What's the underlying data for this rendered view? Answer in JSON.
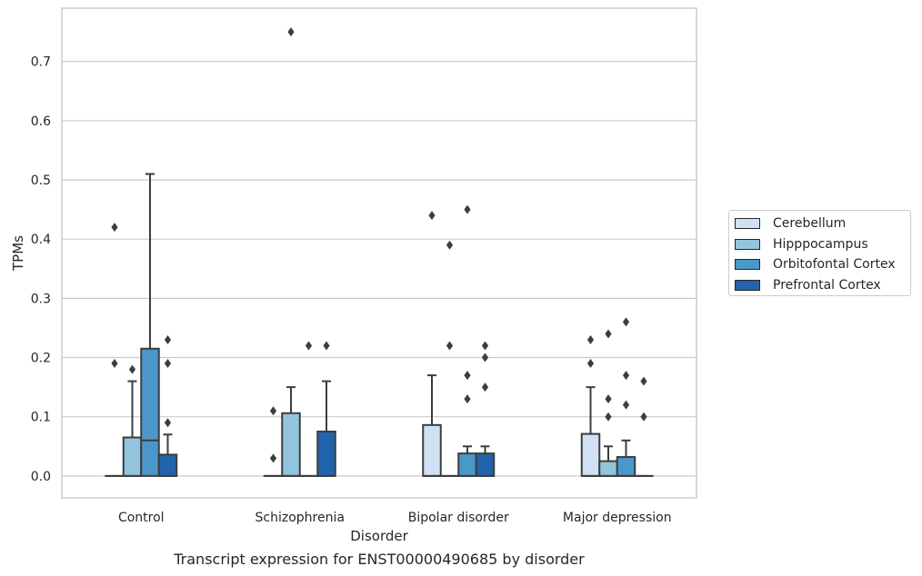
{
  "caption": "Transcript expression for ENST00000490685 by disorder",
  "chart_data": {
    "type": "box",
    "title": "",
    "xlabel": "Disorder",
    "ylabel": "TPMs",
    "ylim": [
      -0.037,
      0.79
    ],
    "yticks": [
      "0.0",
      "0.1",
      "0.2",
      "0.3",
      "0.4",
      "0.5",
      "0.6",
      "0.7"
    ],
    "categories": [
      "Control",
      "Schizophrenia",
      "Bipolar disorder",
      "Major depression"
    ],
    "grid": true,
    "legend_position": "right",
    "series": [
      {
        "name": "Cerebellum",
        "color": "#cfe1f2",
        "boxes": [
          {
            "q1": 0,
            "median": 0,
            "q3": 0,
            "whisker_low": 0,
            "whisker_high": 0,
            "outliers": [
              0.42,
              0.19
            ]
          },
          {
            "q1": 0,
            "median": 0,
            "q3": 0,
            "whisker_low": 0,
            "whisker_high": 0,
            "outliers": [
              0.11,
              0.03
            ]
          },
          {
            "q1": 0,
            "median": 0,
            "q3": 0.086,
            "whisker_low": 0,
            "whisker_high": 0.17,
            "outliers": [
              0.44
            ]
          },
          {
            "q1": 0,
            "median": 0,
            "q3": 0.071,
            "whisker_low": 0,
            "whisker_high": 0.15,
            "outliers": [
              0.23,
              0.19
            ]
          }
        ]
      },
      {
        "name": "Hipppocampus",
        "color": "#93c4de",
        "boxes": [
          {
            "q1": 0,
            "median": 0,
            "q3": 0.065,
            "whisker_low": 0,
            "whisker_high": 0.16,
            "outliers": [
              0.18
            ]
          },
          {
            "q1": 0,
            "median": 0,
            "q3": 0.106,
            "whisker_low": 0,
            "whisker_high": 0.15,
            "outliers": [
              0.75
            ]
          },
          {
            "q1": 0,
            "median": 0,
            "q3": 0,
            "whisker_low": 0,
            "whisker_high": 0,
            "outliers": [
              0.39,
              0.22
            ]
          },
          {
            "q1": 0,
            "median": 0,
            "q3": 0.025,
            "whisker_low": 0,
            "whisker_high": 0.05,
            "outliers": [
              0.24,
              0.13,
              0.1
            ]
          }
        ]
      },
      {
        "name": "Orbitofontal Cortex",
        "color": "#4a98c9",
        "boxes": [
          {
            "q1": 0,
            "median": 0.06,
            "q3": 0.215,
            "whisker_low": 0,
            "whisker_high": 0.51,
            "outliers": []
          },
          {
            "q1": 0,
            "median": 0,
            "q3": 0,
            "whisker_low": 0,
            "whisker_high": 0,
            "outliers": [
              0.22
            ]
          },
          {
            "q1": 0,
            "median": 0,
            "q3": 0.038,
            "whisker_low": 0,
            "whisker_high": 0.05,
            "outliers": [
              0.45,
              0.17,
              0.13
            ]
          },
          {
            "q1": 0,
            "median": 0,
            "q3": 0.032,
            "whisker_low": 0,
            "whisker_high": 0.06,
            "outliers": [
              0.26,
              0.17,
              0.12
            ]
          }
        ]
      },
      {
        "name": "Prefrontal Cortex",
        "color": "#2164ab",
        "boxes": [
          {
            "q1": 0,
            "median": 0,
            "q3": 0.036,
            "whisker_low": 0,
            "whisker_high": 0.07,
            "outliers": [
              0.23,
              0.19,
              0.09
            ]
          },
          {
            "q1": 0,
            "median": 0,
            "q3": 0.075,
            "whisker_low": 0,
            "whisker_high": 0.16,
            "outliers": [
              0.22
            ]
          },
          {
            "q1": 0,
            "median": 0,
            "q3": 0.038,
            "whisker_low": 0,
            "whisker_high": 0.05,
            "outliers": [
              0.22,
              0.2,
              0.15
            ]
          },
          {
            "q1": 0,
            "median": 0,
            "q3": 0,
            "whisker_low": 0,
            "whisker_high": 0,
            "outliers": [
              0.16,
              0.1
            ]
          }
        ]
      }
    ]
  }
}
